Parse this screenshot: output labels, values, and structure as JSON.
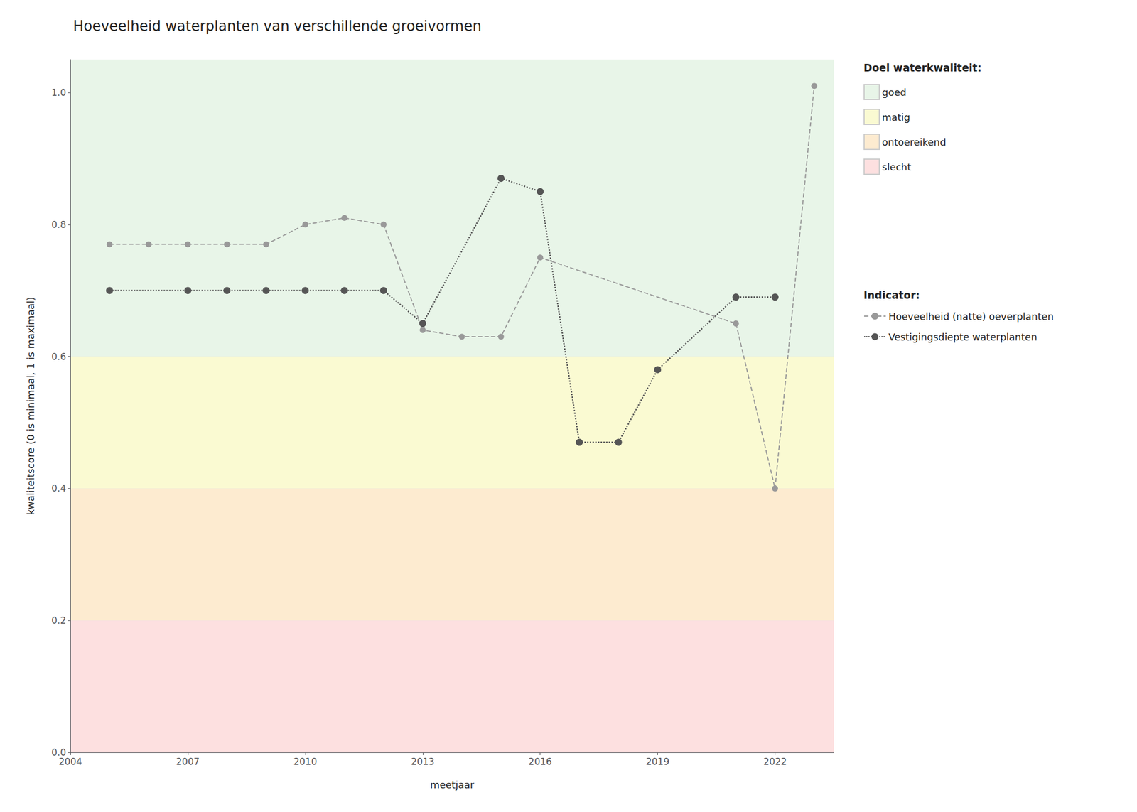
{
  "chart_data": {
    "type": "line",
    "title": "Hoeveelheid waterplanten van verschillende groeivormen",
    "x_label": "meetjaar",
    "y_label": "kwaliteitscore (0 is minimaal, 1 is maximaal)",
    "xlim": [
      2004,
      2023.5
    ],
    "xticks": [
      2004,
      2007,
      2010,
      2013,
      2016,
      2019,
      2022
    ],
    "ylim": [
      0.0,
      1.05
    ],
    "yticks": [
      {
        "value": 0,
        "label": "0.0"
      },
      0.2,
      0.4,
      0.6,
      0.8,
      {
        "value": 1,
        "label": "1.0"
      }
    ],
    "grid": true,
    "legend": "right",
    "series": [
      {
        "name": "Hoeveelheid (natte) oeverplanten",
        "color": "#999999",
        "line_style": "dashed",
        "marker": "circle",
        "x": [
          2005,
          2006,
          2007,
          2008,
          2009,
          2010,
          2011,
          2012,
          2013,
          2014,
          2015,
          2016,
          2021,
          2022,
          2023
        ],
        "values": [
          0.77,
          0.77,
          0.77,
          0.77,
          0.77,
          0.8,
          0.81,
          0.8,
          0.64,
          0.63,
          0.63,
          0.75,
          0.65,
          0.4,
          1.01
        ]
      },
      {
        "name": "Vestigingsdiepte waterplanten",
        "color": "#555555",
        "line_style": "dotted",
        "marker": "circle",
        "x": [
          2005,
          2007,
          2008,
          2009,
          2010,
          2011,
          2012,
          2013,
          2015,
          2016,
          2017,
          2018,
          2019,
          2021,
          2022
        ],
        "values": [
          0.7,
          0.7,
          0.7,
          0.7,
          0.7,
          0.7,
          0.7,
          0.65,
          0.87,
          0.85,
          0.47,
          0.47,
          0.58,
          0.69,
          0.69
        ]
      }
    ],
    "bands": [
      {
        "name": "goed",
        "color": "#e8f5e8",
        "min": 0.6,
        "max": 1.05
      },
      {
        "name": "matig",
        "color": "#fafad2",
        "min": 0.4,
        "max": 0.6
      },
      {
        "name": "ontoereikend",
        "color": "#fdebd0",
        "min": 0.2,
        "max": 0.4
      },
      {
        "name": "slecht",
        "color": "#fde0e0",
        "min": 0.0,
        "max": 0.2
      }
    ],
    "band_legend_title": "Doel waterkwaliteit:",
    "series_legend_title": "Indicator:"
  }
}
